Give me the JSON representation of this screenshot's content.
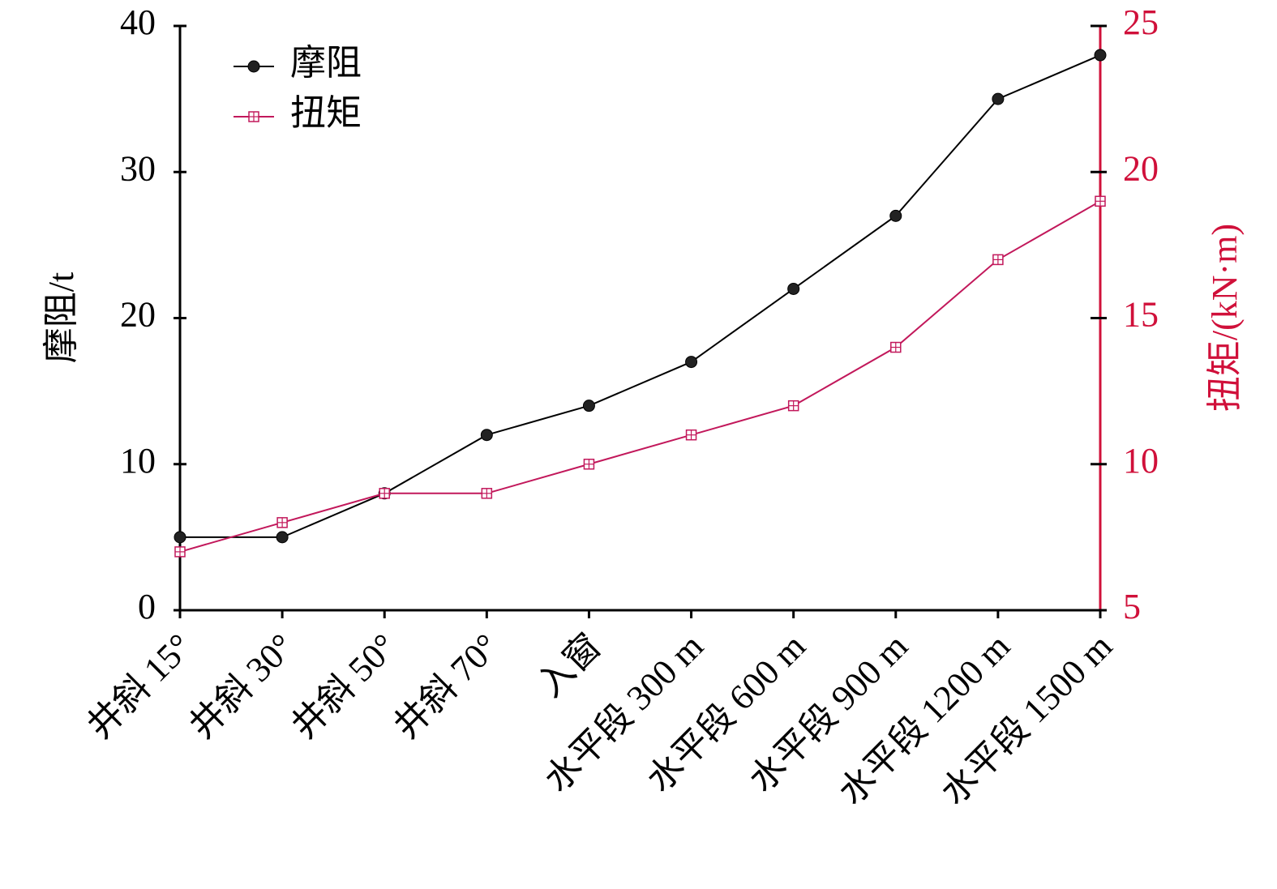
{
  "chart_data": {
    "type": "line",
    "categories": [
      "井斜 15°",
      "井斜 30°",
      "井斜 50°",
      "井斜 70°",
      "入窗",
      "水平段 300 m",
      "水平段 600 m",
      "水平段 900 m",
      "水平段 1200 m",
      "水平段 1500 m"
    ],
    "series": [
      {
        "name": "摩阻",
        "color": "#000000",
        "values": [
          5,
          5,
          8,
          12,
          14,
          17,
          22,
          27,
          35,
          38
        ]
      },
      {
        "name": "扭矩",
        "color": "#c2185b",
        "axis": "y2",
        "values": [
          7,
          8,
          9,
          9,
          10,
          11,
          12,
          14,
          17,
          19
        ]
      }
    ],
    "ylabel": "摩阻/t",
    "y2label": "扭矩/(kN·m)",
    "ylim": [
      0,
      40
    ],
    "yticks": [
      0,
      10,
      20,
      30,
      40
    ],
    "y2lim": [
      5,
      25
    ],
    "y2ticks": [
      5,
      10,
      15,
      20,
      25
    ],
    "y2color": "#d0103a",
    "legend": "upper left"
  }
}
